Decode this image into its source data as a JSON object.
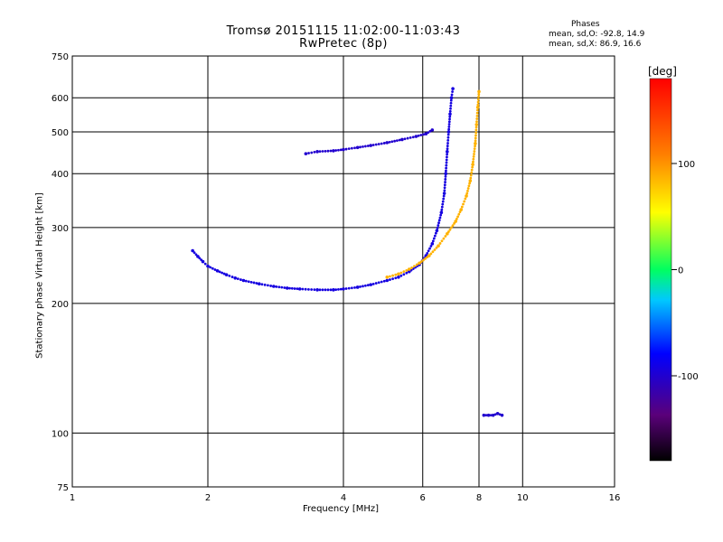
{
  "chart_data": {
    "type": "scatter",
    "title": "Tromsø 20151115 11:02:00-11:03:43",
    "subtitle": "RwPretec (8p)",
    "xlabel": "Frequency [MHz]",
    "ylabel": "Stationary phase Virtual Height [km]",
    "xscale": "log",
    "yscale": "log",
    "xlim": [
      1,
      16
    ],
    "ylim": [
      75,
      750
    ],
    "x_ticks": [
      1,
      2,
      4,
      6,
      8,
      10,
      16
    ],
    "y_ticks": [
      75,
      100,
      200,
      300,
      400,
      500,
      600,
      750
    ],
    "grid": true,
    "stats": {
      "heading": "Phases",
      "o_line": "mean, sd,O: -92.8, 14.9",
      "x_line": "mean, sd,X:  86.9, 16.6"
    },
    "colorbar": {
      "label": "[deg]",
      "range": [
        -180,
        180
      ],
      "ticks": [
        100,
        0,
        -100
      ]
    },
    "traces": [
      {
        "kind": "o-mode",
        "phase": -92.8,
        "points": [
          [
            1.85,
            265
          ],
          [
            1.9,
            257
          ],
          [
            1.95,
            250
          ],
          [
            2.0,
            244
          ],
          [
            2.1,
            238
          ],
          [
            2.2,
            233
          ],
          [
            2.3,
            229
          ],
          [
            2.4,
            226
          ],
          [
            2.6,
            222
          ],
          [
            2.8,
            219
          ],
          [
            3.0,
            217
          ],
          [
            3.2,
            216
          ],
          [
            3.5,
            215
          ],
          [
            3.8,
            215
          ],
          [
            4.0,
            216
          ],
          [
            4.3,
            218
          ],
          [
            4.6,
            221
          ],
          [
            5.0,
            226
          ],
          [
            5.3,
            230
          ],
          [
            5.6,
            237
          ],
          [
            5.9,
            246
          ],
          [
            6.1,
            258
          ],
          [
            6.3,
            275
          ],
          [
            6.45,
            295
          ],
          [
            6.6,
            325
          ],
          [
            6.7,
            360
          ],
          [
            6.75,
            400
          ],
          [
            6.8,
            450
          ],
          [
            6.85,
            500
          ],
          [
            6.9,
            550
          ],
          [
            6.95,
            600
          ],
          [
            7.0,
            630
          ]
        ]
      },
      {
        "kind": "o-mode-upper",
        "phase": -100,
        "points": [
          [
            3.3,
            445
          ],
          [
            3.5,
            450
          ],
          [
            3.8,
            452
          ],
          [
            4.0,
            455
          ],
          [
            4.3,
            460
          ],
          [
            4.6,
            465
          ],
          [
            5.0,
            472
          ],
          [
            5.4,
            480
          ],
          [
            5.8,
            488
          ],
          [
            6.1,
            495
          ],
          [
            6.3,
            505
          ]
        ]
      },
      {
        "kind": "x-mode",
        "phase": 86.9,
        "points": [
          [
            5.0,
            230
          ],
          [
            5.3,
            234
          ],
          [
            5.6,
            240
          ],
          [
            5.9,
            248
          ],
          [
            6.2,
            258
          ],
          [
            6.5,
            272
          ],
          [
            6.8,
            290
          ],
          [
            7.1,
            310
          ],
          [
            7.3,
            330
          ],
          [
            7.5,
            355
          ],
          [
            7.65,
            385
          ],
          [
            7.75,
            420
          ],
          [
            7.85,
            470
          ],
          [
            7.9,
            520
          ],
          [
            7.95,
            570
          ],
          [
            8.0,
            620
          ]
        ]
      },
      {
        "kind": "sporadic-e",
        "phase": -100,
        "points": [
          [
            8.2,
            110
          ],
          [
            8.4,
            110
          ],
          [
            8.6,
            110
          ],
          [
            8.8,
            111
          ],
          [
            9.0,
            110
          ]
        ]
      }
    ]
  }
}
